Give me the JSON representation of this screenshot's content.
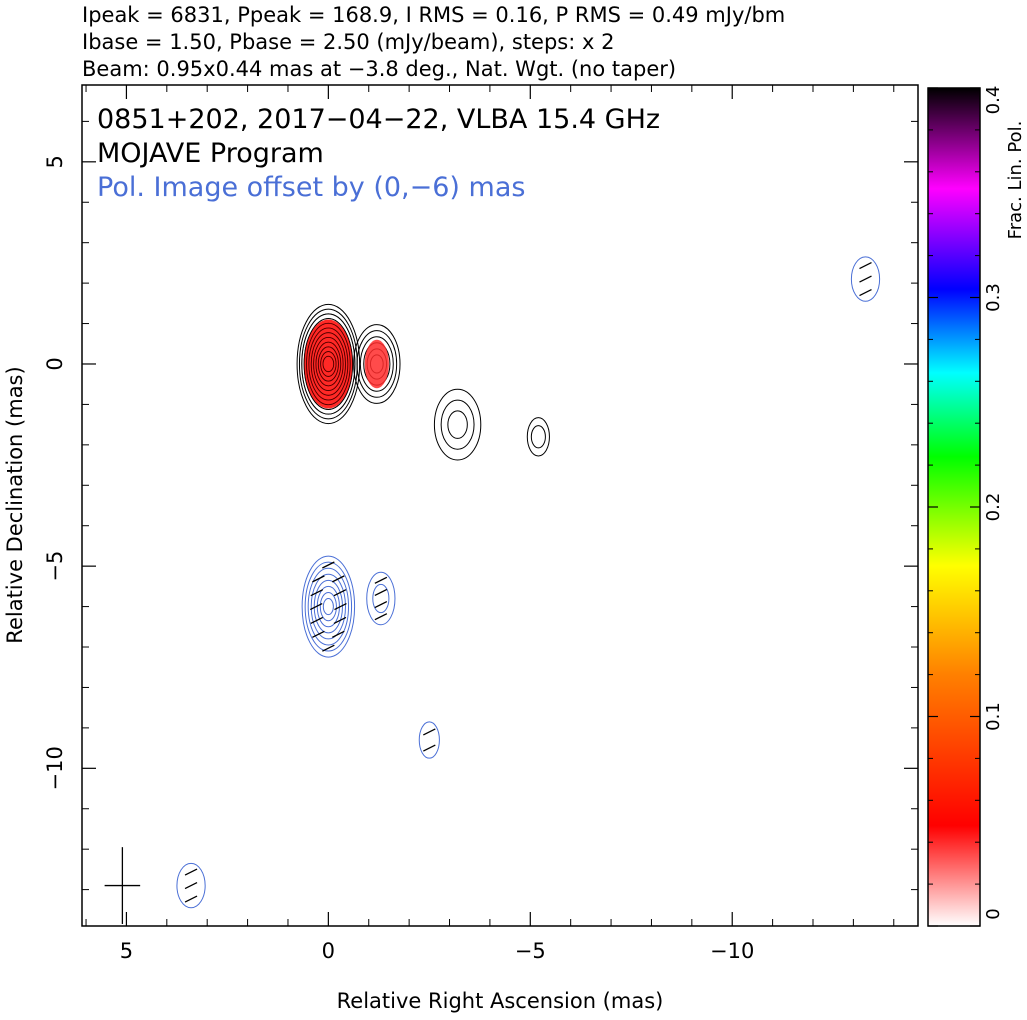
{
  "header": {
    "line1": "Ipeak = 6831, Ppeak = 168.9, I RMS = 0.16, P RMS = 0.49 mJy/bm",
    "line2": "Ibase = 1.50, Pbase = 2.50 (mJy/beam), steps: x 2",
    "line3": "Beam: 0.95x0.44 mas at −3.8 deg., Nat. Wgt. (no taper)"
  },
  "annotations": {
    "source_line": "0851+202, 2017−04−22, VLBA 15.4 GHz",
    "program_line": "MOJAVE Program",
    "offset_line": "Pol. Image offset by (0,−6) mas",
    "offset_color": "#4a6fd6"
  },
  "chart_data": {
    "type": "contour",
    "xlabel": "Relative Right Ascension (mas)",
    "ylabel": "Relative Declination (mas)",
    "xlim": [
      6.1,
      -14.6
    ],
    "ylim": [
      -13.9,
      6.9
    ],
    "x_ticks": [
      5,
      0,
      -5,
      -10
    ],
    "x_tick_labels": [
      "5",
      "0",
      "−5",
      "−10"
    ],
    "y_ticks": [
      5,
      0,
      -5,
      -10
    ],
    "y_tick_labels": [
      "5",
      "0",
      "−5",
      "−10"
    ],
    "colorbar": {
      "label": "Frac. Lin. Pol.",
      "range": [
        0,
        0.4
      ],
      "ticks": [
        0,
        0.1,
        0.2,
        0.3,
        0.4
      ],
      "tick_labels": [
        "0",
        "0.1",
        "0.2",
        "0.3",
        "0.4"
      ],
      "colormap": [
        "#ffffff",
        "#ff0000",
        "#ff8000",
        "#ffff00",
        "#00ff00",
        "#00ffff",
        "#0000ff",
        "#ff00ff",
        "#000000"
      ]
    },
    "stokes_i_components": [
      {
        "x": 0.0,
        "y": 0.0,
        "rx": 0.7,
        "ry": 1.4,
        "levels": 12
      },
      {
        "x": -1.2,
        "y": 0.0,
        "rx": 0.5,
        "ry": 0.9,
        "levels": 6
      },
      {
        "x": -3.2,
        "y": -1.5,
        "rx": 0.5,
        "ry": 0.8,
        "levels": 3
      },
      {
        "x": -5.2,
        "y": -1.8,
        "rx": 0.2,
        "ry": 0.4,
        "levels": 2
      }
    ],
    "polarized_components": [
      {
        "x": 0.0,
        "y": -6.0,
        "rx": 0.6,
        "ry": 1.2,
        "levels": 8
      },
      {
        "x": -1.3,
        "y": -5.8,
        "rx": 0.3,
        "ry": 0.6,
        "levels": 2
      },
      {
        "x": -2.5,
        "y": -9.3,
        "rx": 0.2,
        "ry": 0.4,
        "levels": 1
      },
      {
        "x": -13.3,
        "y": 2.1,
        "rx": 0.3,
        "ry": 0.5,
        "levels": 1
      },
      {
        "x": 3.4,
        "y": -12.9,
        "rx": 0.3,
        "ry": 0.5,
        "levels": 1
      }
    ],
    "fractional_pol_regions": [
      {
        "x": 0.0,
        "y": 0.0,
        "rx": 0.6,
        "ry": 1.1,
        "value": 0.05
      },
      {
        "x": -1.2,
        "y": 0.0,
        "rx": 0.3,
        "ry": 0.6,
        "value": 0.04
      }
    ],
    "beam": {
      "major_mas": 0.95,
      "minor_mas": 0.44,
      "pa_deg": -3.8,
      "x": 5.1,
      "y": -12.9
    },
    "grid": false
  }
}
